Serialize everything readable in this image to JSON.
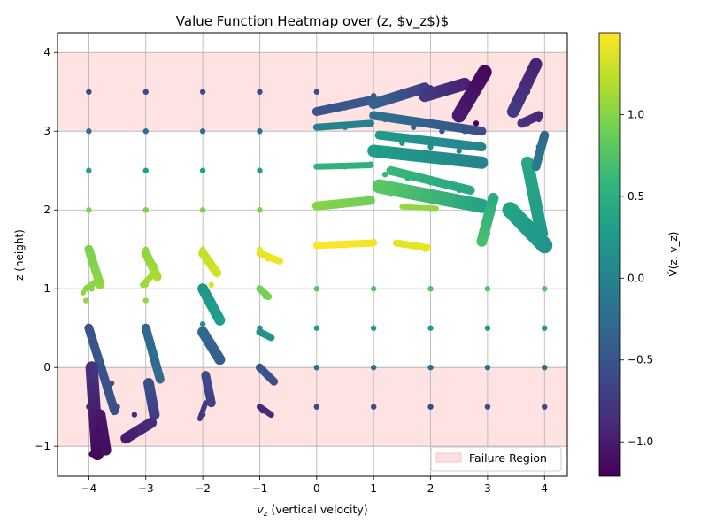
{
  "chart_data": {
    "type": "scatter",
    "title": "Value Function Heatmap over (z, $v_z$)$",
    "xlabel": "v_z (vertical velocity)",
    "xlabel_symbol": "v",
    "xlabel_sub": "z",
    "xlabel_rest": " (vertical velocity)",
    "ylabel": "z (height)",
    "colorbar_label": "V̂(z, v_z)",
    "xlim": [
      -4.55,
      4.4
    ],
    "ylim": [
      -1.38,
      4.25
    ],
    "xticks": [
      -4,
      -3,
      -2,
      -1,
      0,
      1,
      2,
      3,
      4
    ],
    "xtick_labels": [
      "−4",
      "−3",
      "−2",
      "−1",
      "0",
      "1",
      "2",
      "3",
      "4"
    ],
    "yticks": [
      -1,
      0,
      1,
      2,
      3,
      4
    ],
    "ytick_labels": [
      "−1",
      "0",
      "1",
      "2",
      "3",
      "4"
    ],
    "grid": true,
    "failure_regions": [
      {
        "y_from": 3,
        "y_to": 4,
        "color": "#ffcccc"
      },
      {
        "y_from": -1,
        "y_to": 0,
        "color": "#ffcccc"
      }
    ],
    "legend": {
      "label": "Failure Region",
      "position": "lower right"
    },
    "colorbar": {
      "min": -1.21,
      "max": 1.5,
      "ticks": [
        -1.0,
        -0.5,
        0.0,
        0.5,
        1.0
      ],
      "tick_labels": [
        "−1.0",
        "−0.5",
        "0.0",
        "0.5",
        "1.0"
      ],
      "colormap": [
        "#440154",
        "#482878",
        "#3e4989",
        "#31688e",
        "#26828e",
        "#1f9e89",
        "#35b779",
        "#6ece58",
        "#b5de2b",
        "#fde725"
      ]
    },
    "points": [
      {
        "x": -4,
        "y": 3.5,
        "v": -0.6
      },
      {
        "x": -3,
        "y": 3.5,
        "v": -0.6
      },
      {
        "x": -2,
        "y": 3.5,
        "v": -0.6
      },
      {
        "x": -1,
        "y": 3.5,
        "v": -0.6
      },
      {
        "x": 0,
        "y": 3.5,
        "v": -0.6
      },
      {
        "x": -4,
        "y": 3,
        "v": -0.2
      },
      {
        "x": -3,
        "y": 3,
        "v": -0.2
      },
      {
        "x": -2,
        "y": 3,
        "v": -0.2
      },
      {
        "x": -1,
        "y": 3,
        "v": -0.2
      },
      {
        "x": -4,
        "y": 2.5,
        "v": 0.3
      },
      {
        "x": -3,
        "y": 2.5,
        "v": 0.3
      },
      {
        "x": -2,
        "y": 2.5,
        "v": 0.3
      },
      {
        "x": -1,
        "y": 2.5,
        "v": 0.3
      },
      {
        "x": -4,
        "y": 2,
        "v": 0.95
      },
      {
        "x": -3,
        "y": 2,
        "v": 0.95
      },
      {
        "x": -2,
        "y": 2,
        "v": 0.95
      },
      {
        "x": -1,
        "y": 2,
        "v": 0.95
      },
      {
        "x": 0,
        "y": 1,
        "v": 0.75
      },
      {
        "x": 1,
        "y": 1,
        "v": 0.75
      },
      {
        "x": 2,
        "y": 1,
        "v": 0.75
      },
      {
        "x": 3,
        "y": 1,
        "v": 0.75
      },
      {
        "x": 4,
        "y": 1,
        "v": 0.75
      },
      {
        "x": 0,
        "y": 0.5,
        "v": 0.25
      },
      {
        "x": 1,
        "y": 0.5,
        "v": 0.25
      },
      {
        "x": 2,
        "y": 0.5,
        "v": 0.25
      },
      {
        "x": 3,
        "y": 0.5,
        "v": 0.25
      },
      {
        "x": 4,
        "y": 0.5,
        "v": 0.25
      },
      {
        "x": 0,
        "y": 0,
        "v": -0.2
      },
      {
        "x": 1,
        "y": 0,
        "v": -0.2
      },
      {
        "x": 2,
        "y": 0,
        "v": -0.2
      },
      {
        "x": 3,
        "y": 0,
        "v": -0.2
      },
      {
        "x": 4,
        "y": 0,
        "v": -0.2
      },
      {
        "x": 0,
        "y": -0.5,
        "v": -0.6
      },
      {
        "x": 1,
        "y": -0.5,
        "v": -0.6
      },
      {
        "x": 2,
        "y": -0.5,
        "v": -0.6
      },
      {
        "x": 3,
        "y": -0.5,
        "v": -0.6
      },
      {
        "x": 4,
        "y": -0.5,
        "v": -0.6
      },
      {
        "x": -4,
        "y": 1.5,
        "v": 0.95
      },
      {
        "x": -3.85,
        "y": 1.2,
        "v": 1.0
      },
      {
        "x": -3.8,
        "y": 1.1,
        "v": 1.0
      },
      {
        "x": -3.95,
        "y": 1.0,
        "v": 1.0
      },
      {
        "x": -4.1,
        "y": 0.95,
        "v": 1.05
      },
      {
        "x": -4.05,
        "y": 0.85,
        "v": 1.05
      },
      {
        "x": -3,
        "y": 1.5,
        "v": 1.05
      },
      {
        "x": -2.85,
        "y": 1.3,
        "v": 1.1
      },
      {
        "x": -2.8,
        "y": 1.15,
        "v": 1.15
      },
      {
        "x": -3.0,
        "y": 1.05,
        "v": 1.1
      },
      {
        "x": -3.0,
        "y": 0.85,
        "v": 1.05
      },
      {
        "x": -2,
        "y": 1.5,
        "v": 1.25
      },
      {
        "x": -1.85,
        "y": 1.3,
        "v": 1.3
      },
      {
        "x": -1.75,
        "y": 1.2,
        "v": 1.3
      },
      {
        "x": -1.85,
        "y": 1.05,
        "v": 1.35
      },
      {
        "x": -1,
        "y": 1.5,
        "v": 1.4
      },
      {
        "x": -0.85,
        "y": 1.38,
        "v": 1.45
      },
      {
        "x": -0.65,
        "y": 1.35,
        "v": 1.45
      },
      {
        "x": 0,
        "y": 1.55,
        "v": 1.5
      },
      {
        "x": 0.5,
        "y": 1.55,
        "v": 1.5
      },
      {
        "x": 1,
        "y": 1.6,
        "v": 1.45
      },
      {
        "x": 1.5,
        "y": 1.58,
        "v": 1.4
      },
      {
        "x": 1.9,
        "y": 1.5,
        "v": 1.4
      },
      {
        "x": 0,
        "y": 2.05,
        "v": 1.0
      },
      {
        "x": 0.5,
        "y": 2.1,
        "v": 0.95
      },
      {
        "x": 0.9,
        "y": 2.15,
        "v": 0.9
      },
      {
        "x": 1.6,
        "y": 2.05,
        "v": 1.05
      },
      {
        "x": 2.0,
        "y": 2.02,
        "v": 1.05
      },
      {
        "x": 0,
        "y": 2.55,
        "v": 0.55
      },
      {
        "x": 0.5,
        "y": 2.55,
        "v": 0.55
      },
      {
        "x": 0.95,
        "y": 2.58,
        "v": 0.5
      },
      {
        "x": 0,
        "y": 3.05,
        "v": -0.05
      },
      {
        "x": 0.5,
        "y": 3.05,
        "v": 0.0
      },
      {
        "x": 0.95,
        "y": 3.1,
        "v": -0.05
      },
      {
        "x": 0,
        "y": 3.25,
        "v": -0.5
      },
      {
        "x": 0.5,
        "y": 3.3,
        "v": -0.45
      },
      {
        "x": 1.0,
        "y": 3.45,
        "v": -0.4
      },
      {
        "x": 1.5,
        "y": 3.5,
        "v": -0.6
      },
      {
        "x": 2.0,
        "y": 3.55,
        "v": -0.8
      },
      {
        "x": 2.5,
        "y": 3.6,
        "v": -0.95
      },
      {
        "x": 2.9,
        "y": 3.75,
        "v": -1.1
      },
      {
        "x": 2.8,
        "y": 3.1,
        "v": -1.15
      },
      {
        "x": 1.2,
        "y": 3.15,
        "v": -0.2
      },
      {
        "x": 1.7,
        "y": 3.05,
        "v": -0.3
      },
      {
        "x": 2.2,
        "y": 3.0,
        "v": -0.45
      },
      {
        "x": 2.6,
        "y": 3.0,
        "v": -0.55
      },
      {
        "x": 1.0,
        "y": 2.75,
        "v": 0.3
      },
      {
        "x": 1.5,
        "y": 2.85,
        "v": 0.2
      },
      {
        "x": 2.0,
        "y": 2.8,
        "v": 0.1
      },
      {
        "x": 2.5,
        "y": 2.75,
        "v": 0.05
      },
      {
        "x": 2.9,
        "y": 2.6,
        "v": 0.0
      },
      {
        "x": 1.2,
        "y": 2.45,
        "v": 0.6
      },
      {
        "x": 1.6,
        "y": 2.4,
        "v": 0.55
      },
      {
        "x": 2.0,
        "y": 2.35,
        "v": 0.5
      },
      {
        "x": 2.5,
        "y": 2.25,
        "v": 0.4
      },
      {
        "x": 2.8,
        "y": 2.1,
        "v": 0.35
      },
      {
        "x": 1.3,
        "y": 2.2,
        "v": 0.8
      },
      {
        "x": 1.8,
        "y": 2.2,
        "v": 0.7
      },
      {
        "x": 3.0,
        "y": 1.7,
        "v": 0.65
      },
      {
        "x": 3.05,
        "y": 2.0,
        "v": 0.55
      },
      {
        "x": 3.1,
        "y": 2.1,
        "v": 0.45
      },
      {
        "x": 2.9,
        "y": 1.6,
        "v": 0.7
      },
      {
        "x": 3.5,
        "y": 2.0,
        "v": 0.35
      },
      {
        "x": 3.7,
        "y": 1.8,
        "v": 0.25
      },
      {
        "x": 3.9,
        "y": 1.6,
        "v": 0.25
      },
      {
        "x": 3.8,
        "y": 2.4,
        "v": 0.4
      },
      {
        "x": 3.9,
        "y": 2.1,
        "v": 0.3
      },
      {
        "x": 4.0,
        "y": 1.55,
        "v": 0.2
      },
      {
        "x": 3.9,
        "y": 2.8,
        "v": -0.2
      },
      {
        "x": 4.0,
        "y": 2.95,
        "v": -0.3
      },
      {
        "x": 3.85,
        "y": 2.65,
        "v": -0.1
      },
      {
        "x": 3.5,
        "y": 3.3,
        "v": -0.75
      },
      {
        "x": 3.7,
        "y": 3.5,
        "v": -0.85
      },
      {
        "x": 3.8,
        "y": 3.85,
        "v": -0.95
      },
      {
        "x": 3.9,
        "y": 3.15,
        "v": -0.9
      },
      {
        "x": 3.7,
        "y": 3.1,
        "v": -0.8
      },
      {
        "x": -4,
        "y": 0.5,
        "v": -0.5
      },
      {
        "x": -3.8,
        "y": 0.1,
        "v": -0.4
      },
      {
        "x": -3.6,
        "y": -0.2,
        "v": -0.45
      },
      {
        "x": -3.5,
        "y": -0.5,
        "v": -0.55
      },
      {
        "x": -3.9,
        "y": -0.1,
        "v": -0.8
      },
      {
        "x": -4.0,
        "y": -0.5,
        "v": -0.95
      },
      {
        "x": -3.85,
        "y": -0.8,
        "v": -1.1
      },
      {
        "x": -3.95,
        "y": -1.1,
        "v": -1.15
      },
      {
        "x": -3.75,
        "y": -1.0,
        "v": -1.1
      },
      {
        "x": -3,
        "y": 0.5,
        "v": -0.3
      },
      {
        "x": -2.85,
        "y": 0.2,
        "v": -0.2
      },
      {
        "x": -2.75,
        "y": -0.1,
        "v": -0.3
      },
      {
        "x": -2.95,
        "y": -0.3,
        "v": -0.55
      },
      {
        "x": -2.85,
        "y": -0.55,
        "v": -0.7
      },
      {
        "x": -3.1,
        "y": -0.8,
        "v": -0.9
      },
      {
        "x": -3.3,
        "y": -0.9,
        "v": -1.0
      },
      {
        "x": -3.2,
        "y": -0.6,
        "v": -0.85
      },
      {
        "x": -2,
        "y": 1.0,
        "v": 0.2
      },
      {
        "x": -1.85,
        "y": 0.8,
        "v": 0.3
      },
      {
        "x": -1.7,
        "y": 0.65,
        "v": 0.25
      },
      {
        "x": -2.0,
        "y": 0.55,
        "v": 0.15
      },
      {
        "x": -1.95,
        "y": 0.4,
        "v": -0.3
      },
      {
        "x": -1.75,
        "y": 0.1,
        "v": -0.4
      },
      {
        "x": -1.9,
        "y": -0.2,
        "v": -0.6
      },
      {
        "x": -1.85,
        "y": -0.4,
        "v": -0.7
      },
      {
        "x": -2.0,
        "y": -0.6,
        "v": -0.75
      },
      {
        "x": -1,
        "y": 1.0,
        "v": 0.9
      },
      {
        "x": -0.9,
        "y": 0.9,
        "v": 0.95
      },
      {
        "x": -1,
        "y": 0.5,
        "v": 0.15
      },
      {
        "x": -0.85,
        "y": 0.4,
        "v": 0.2
      },
      {
        "x": -1,
        "y": 0.0,
        "v": -0.5
      },
      {
        "x": -0.8,
        "y": -0.15,
        "v": -0.55
      },
      {
        "x": -0.95,
        "y": -0.55,
        "v": -0.9
      }
    ],
    "streaks": [
      {
        "x0": -4.0,
        "y0": 1.5,
        "x1": -3.8,
        "y1": 1.05,
        "v0": 0.95,
        "v1": 1.05,
        "w": 10
      },
      {
        "x0": -4.05,
        "y0": 1.0,
        "x1": -3.85,
        "y1": 1.1,
        "v0": 1.0,
        "v1": 1.05,
        "w": 7
      },
      {
        "x0": -3.0,
        "y0": 1.45,
        "x1": -2.8,
        "y1": 1.15,
        "v0": 1.05,
        "v1": 1.15,
        "w": 10
      },
      {
        "x0": -3.05,
        "y0": 1.05,
        "x1": -2.85,
        "y1": 1.2,
        "v0": 1.1,
        "v1": 1.15,
        "w": 7
      },
      {
        "x0": -2.0,
        "y0": 1.45,
        "x1": -1.75,
        "y1": 1.2,
        "v0": 1.25,
        "v1": 1.35,
        "w": 10
      },
      {
        "x0": -1.0,
        "y0": 1.45,
        "x1": -0.65,
        "y1": 1.35,
        "v0": 1.4,
        "v1": 1.45,
        "w": 8
      },
      {
        "x0": 0.0,
        "y0": 1.55,
        "x1": 1.0,
        "y1": 1.58,
        "v0": 1.5,
        "v1": 1.45,
        "w": 8
      },
      {
        "x0": 1.4,
        "y0": 1.58,
        "x1": 1.95,
        "y1": 1.52,
        "v0": 1.4,
        "v1": 1.4,
        "w": 8
      },
      {
        "x0": 0.0,
        "y0": 2.05,
        "x1": 0.95,
        "y1": 2.12,
        "v0": 1.0,
        "v1": 0.9,
        "w": 10
      },
      {
        "x0": 1.5,
        "y0": 2.04,
        "x1": 2.1,
        "y1": 2.02,
        "v0": 1.05,
        "v1": 1.05,
        "w": 6
      },
      {
        "x0": 0.0,
        "y0": 2.55,
        "x1": 0.95,
        "y1": 2.57,
        "v0": 0.55,
        "v1": 0.5,
        "w": 7
      },
      {
        "x0": 0.0,
        "y0": 3.05,
        "x1": 0.95,
        "y1": 3.1,
        "v0": 0.0,
        "v1": -0.05,
        "w": 8
      },
      {
        "x0": 0.0,
        "y0": 3.25,
        "x1": 1.0,
        "y1": 3.4,
        "v0": -0.5,
        "v1": -0.45,
        "w": 10
      },
      {
        "x0": 1.0,
        "y0": 3.35,
        "x1": 1.9,
        "y1": 3.55,
        "v0": -0.35,
        "v1": -0.7,
        "w": 12
      },
      {
        "x0": 1.9,
        "y0": 3.45,
        "x1": 2.6,
        "y1": 3.6,
        "v0": -0.75,
        "v1": -0.95,
        "w": 14
      },
      {
        "x0": 2.5,
        "y0": 3.2,
        "x1": 2.95,
        "y1": 3.75,
        "v0": -1.0,
        "v1": -1.15,
        "w": 16
      },
      {
        "x0": 1.0,
        "y0": 3.2,
        "x1": 2.9,
        "y1": 3.0,
        "v0": -0.2,
        "v1": -0.55,
        "w": 10
      },
      {
        "x0": 1.0,
        "y0": 2.75,
        "x1": 2.9,
        "y1": 2.6,
        "v0": 0.3,
        "v1": 0.0,
        "w": 14
      },
      {
        "x0": 1.1,
        "y0": 2.95,
        "x1": 2.9,
        "y1": 2.8,
        "v0": 0.25,
        "v1": 0.0,
        "w": 10
      },
      {
        "x0": 1.1,
        "y0": 2.3,
        "x1": 2.9,
        "y1": 2.05,
        "v0": 0.8,
        "v1": 0.35,
        "w": 16
      },
      {
        "x0": 1.3,
        "y0": 2.5,
        "x1": 2.7,
        "y1": 2.25,
        "v0": 0.6,
        "v1": 0.4,
        "w": 10
      },
      {
        "x0": 2.9,
        "y0": 1.6,
        "x1": 3.1,
        "y1": 2.15,
        "v0": 0.7,
        "v1": 0.45,
        "w": 12
      },
      {
        "x0": 3.4,
        "y0": 2.0,
        "x1": 4.0,
        "y1": 1.55,
        "v0": 0.35,
        "v1": 0.2,
        "w": 18
      },
      {
        "x0": 3.7,
        "y0": 2.6,
        "x1": 3.95,
        "y1": 1.7,
        "v0": 0.4,
        "v1": 0.25,
        "w": 14
      },
      {
        "x0": 3.85,
        "y0": 2.55,
        "x1": 4.0,
        "y1": 2.95,
        "v0": -0.1,
        "v1": -0.3,
        "w": 10
      },
      {
        "x0": 3.45,
        "y0": 3.25,
        "x1": 3.85,
        "y1": 3.85,
        "v0": -0.75,
        "v1": -0.95,
        "w": 14
      },
      {
        "x0": 3.6,
        "y0": 3.1,
        "x1": 3.9,
        "y1": 3.2,
        "v0": -0.8,
        "v1": -0.9,
        "w": 10
      },
      {
        "x0": -4.0,
        "y0": 0.5,
        "x1": -3.55,
        "y1": -0.55,
        "v0": -0.5,
        "v1": -0.55,
        "w": 10
      },
      {
        "x0": -3.95,
        "y0": 0.0,
        "x1": -3.85,
        "y1": -1.1,
        "v0": -0.8,
        "v1": -1.15,
        "w": 14
      },
      {
        "x0": -3.8,
        "y0": -0.6,
        "x1": -3.7,
        "y1": -1.05,
        "v0": -1.05,
        "v1": -1.1,
        "w": 12
      },
      {
        "x0": -3.0,
        "y0": 0.5,
        "x1": -2.75,
        "y1": -0.15,
        "v0": -0.3,
        "v1": -0.25,
        "w": 10
      },
      {
        "x0": -2.95,
        "y0": -0.2,
        "x1": -2.85,
        "y1": -0.6,
        "v0": -0.55,
        "v1": -0.7,
        "w": 12
      },
      {
        "x0": -2.9,
        "y0": -0.7,
        "x1": -3.35,
        "y1": -0.9,
        "v0": -0.85,
        "v1": -1.0,
        "w": 12
      },
      {
        "x0": -2.0,
        "y0": 1.0,
        "x1": -1.7,
        "y1": 0.6,
        "v0": 0.2,
        "v1": 0.3,
        "w": 12
      },
      {
        "x0": -2.0,
        "y0": 0.45,
        "x1": -1.7,
        "y1": 0.1,
        "v0": -0.3,
        "v1": -0.4,
        "w": 12
      },
      {
        "x0": -1.95,
        "y0": -0.1,
        "x1": -1.85,
        "y1": -0.45,
        "v0": -0.6,
        "v1": -0.7,
        "w": 10
      },
      {
        "x0": -1.95,
        "y0": -0.45,
        "x1": -2.05,
        "y1": -0.65,
        "v0": -0.75,
        "v1": -0.75,
        "w": 6
      },
      {
        "x0": -1.0,
        "y0": 1.0,
        "x1": -0.85,
        "y1": 0.9,
        "v0": 0.9,
        "v1": 0.95,
        "w": 8
      },
      {
        "x0": -1.0,
        "y0": 0.45,
        "x1": -0.8,
        "y1": 0.38,
        "v0": 0.15,
        "v1": 0.2,
        "w": 8
      },
      {
        "x0": -1.0,
        "y0": 0.0,
        "x1": -0.75,
        "y1": -0.18,
        "v0": -0.5,
        "v1": -0.55,
        "w": 9
      },
      {
        "x0": -1.0,
        "y0": -0.5,
        "x1": -0.8,
        "y1": -0.6,
        "v0": -0.9,
        "v1": -0.9,
        "w": 7
      }
    ]
  }
}
